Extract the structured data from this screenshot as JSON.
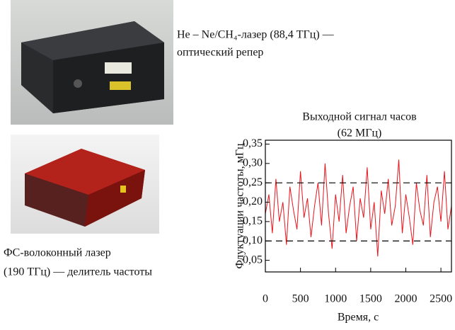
{
  "captions": {
    "laser_top": [
      "He – Ne/CH₄-лазер (88,4 ТГц) —",
      "оптический репер"
    ],
    "laser_bottom": [
      "ФС-волоконный лазер",
      "(190 ТГц) — делитель частоты"
    ]
  },
  "chart_data": {
    "type": "line",
    "title": "Выходной сигнал часов",
    "subtitle": "(62 МГц)",
    "x_label": "Время, с",
    "y_label": "Флуктуации частоты, мГц",
    "color": "#e8141b",
    "x": [
      0,
      50,
      100,
      150,
      200,
      250,
      300,
      350,
      400,
      450,
      500,
      550,
      600,
      650,
      700,
      750,
      800,
      850,
      900,
      950,
      1000,
      1050,
      1100,
      1150,
      1200,
      1250,
      1300,
      1350,
      1400,
      1450,
      1500,
      1550,
      1600,
      1650,
      1700,
      1750,
      1800,
      1850,
      1900,
      1950,
      2000,
      2050,
      2100,
      2150,
      2200,
      2250,
      2300,
      2350,
      2400,
      2450,
      2500,
      2550,
      2600,
      2650
    ],
    "values": [
      0.17,
      0.22,
      0.12,
      0.26,
      0.15,
      0.2,
      0.09,
      0.24,
      0.18,
      0.13,
      0.28,
      0.16,
      0.21,
      0.11,
      0.19,
      0.25,
      0.14,
      0.3,
      0.17,
      0.08,
      0.22,
      0.15,
      0.27,
      0.12,
      0.19,
      0.24,
      0.1,
      0.21,
      0.16,
      0.29,
      0.13,
      0.2,
      0.06,
      0.23,
      0.17,
      0.26,
      0.14,
      0.19,
      0.31,
      0.12,
      0.22,
      0.16,
      0.09,
      0.25,
      0.18,
      0.14,
      0.27,
      0.11,
      0.2,
      0.24,
      0.15,
      0.28,
      0.13,
      0.19
    ],
    "xlim": [
      0,
      2650
    ],
    "ylim": [
      0.02,
      0.36
    ],
    "xticks": [
      0,
      500,
      1000,
      1500,
      2000,
      2500
    ],
    "yticks": [
      {
        "value": 0.05,
        "label": "0,05"
      },
      {
        "value": 0.1,
        "label": "0,10"
      },
      {
        "value": 0.15,
        "label": "0,15"
      },
      {
        "value": 0.2,
        "label": "0,20"
      },
      {
        "value": 0.25,
        "label": "0,25"
      },
      {
        "value": 0.3,
        "label": "0,30"
      },
      {
        "value": 0.35,
        "label": "0,35"
      }
    ],
    "dashed_lines": [
      0.1,
      0.25
    ]
  }
}
